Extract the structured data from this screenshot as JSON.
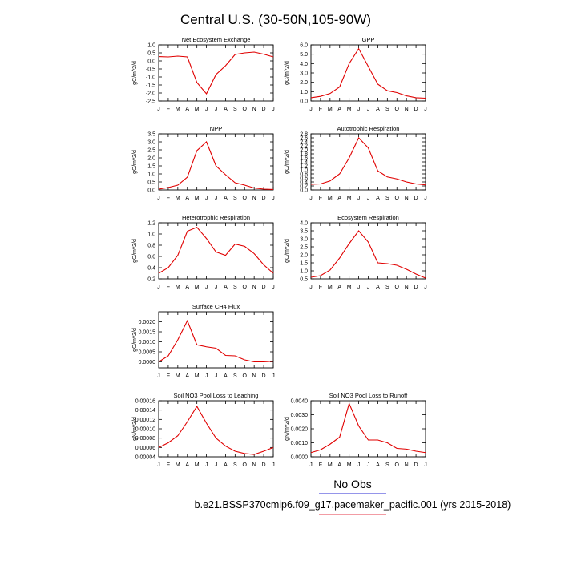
{
  "page": {
    "title": "Central U.S. (30-50N,105-90W)",
    "legend": {
      "label": "No Obs",
      "case": "b.e21.BSSP370cmip6.f09_g17.pacemaker_pacific.001 (yrs 2015-2018)",
      "case_color": "#e6394a",
      "obs_color": "#2b2bd6"
    }
  },
  "chart_data": [
    {
      "type": "line",
      "title": "Net Ecosystem Exchange",
      "ylabel": "gC/m^2/d",
      "categories": [
        "J",
        "F",
        "M",
        "A",
        "M",
        "J",
        "J",
        "A",
        "S",
        "O",
        "N",
        "D",
        "J"
      ],
      "ylim": [
        -2.5,
        1.0
      ],
      "yticks": [
        1.0,
        0.5,
        0.0,
        -0.5,
        -1.0,
        -1.5,
        -2.0,
        -2.5
      ],
      "tick_labels": [
        "1.0",
        "0.5",
        "0.0",
        "-0.5",
        "-1.0",
        "-1.5",
        "-2.0",
        "-2.5"
      ],
      "series": [
        {
          "values": [
            0.27,
            0.25,
            0.3,
            0.25,
            -1.35,
            -2.05,
            -0.85,
            -0.3,
            0.4,
            0.5,
            0.55,
            0.42,
            0.25
          ],
          "color": "#e00000"
        }
      ]
    },
    {
      "type": "line",
      "title": "GPP",
      "ylabel": "gC/m^2/d",
      "categories": [
        "J",
        "F",
        "M",
        "A",
        "M",
        "J",
        "J",
        "A",
        "S",
        "O",
        "N",
        "D",
        "J"
      ],
      "ylim": [
        0.0,
        6.0
      ],
      "yticks": [
        6.0,
        5.0,
        4.0,
        3.0,
        2.0,
        1.0,
        0.0
      ],
      "tick_labels": [
        "6.0",
        "5.0",
        "4.0",
        "3.0",
        "2.0",
        "1.0",
        "0.0"
      ],
      "series": [
        {
          "values": [
            0.35,
            0.5,
            0.8,
            1.5,
            4.0,
            5.6,
            3.7,
            1.8,
            1.1,
            0.9,
            0.55,
            0.35,
            0.3
          ],
          "color": "#e00000"
        }
      ]
    },
    {
      "type": "line",
      "title": "NPP",
      "ylabel": "gC/m^2/d",
      "categories": [
        "J",
        "F",
        "M",
        "A",
        "M",
        "J",
        "J",
        "A",
        "S",
        "O",
        "N",
        "D",
        "J"
      ],
      "ylim": [
        0.0,
        3.5
      ],
      "yticks": [
        3.5,
        3.0,
        2.5,
        2.0,
        1.5,
        1.0,
        0.5,
        0.0
      ],
      "tick_labels": [
        "3.5",
        "3.0",
        "2.5",
        "2.0",
        "1.5",
        "1.0",
        "0.5",
        "0.0"
      ],
      "series": [
        {
          "values": [
            0.05,
            0.15,
            0.3,
            0.8,
            2.45,
            3.0,
            1.5,
            0.95,
            0.45,
            0.3,
            0.12,
            0.05,
            0.03
          ],
          "color": "#e00000"
        }
      ]
    },
    {
      "type": "line",
      "title": "Autotrophic Respiration",
      "ylabel": "gC/m^2/d",
      "categories": [
        "J",
        "F",
        "M",
        "A",
        "M",
        "J",
        "J",
        "A",
        "S",
        "O",
        "N",
        "D",
        "J"
      ],
      "ylim": [
        0.0,
        2.8
      ],
      "yticks": [
        2.8,
        2.6,
        2.4,
        2.2,
        2.0,
        1.8,
        1.6,
        1.4,
        1.2,
        1.0,
        0.8,
        0.6,
        0.4,
        0.2,
        0.0
      ],
      "tick_labels": [
        "2.8",
        "2.6",
        "2.4",
        "2.2",
        "2.0",
        "1.8",
        "1.6",
        "1.4",
        "1.2",
        "1.0",
        "0.8",
        "0.6",
        "0.4",
        "0.2",
        "0.0"
      ],
      "series": [
        {
          "values": [
            0.28,
            0.3,
            0.45,
            0.8,
            1.6,
            2.6,
            2.1,
            0.95,
            0.65,
            0.55,
            0.4,
            0.3,
            0.25
          ],
          "color": "#e00000"
        }
      ]
    },
    {
      "type": "line",
      "title": "Heterotrophic Respiration",
      "ylabel": "gC/m^2/d",
      "categories": [
        "J",
        "F",
        "M",
        "A",
        "M",
        "J",
        "J",
        "A",
        "S",
        "O",
        "N",
        "D",
        "J"
      ],
      "ylim": [
        0.2,
        1.2
      ],
      "yticks": [
        1.2,
        1.0,
        0.8,
        0.6,
        0.4,
        0.2
      ],
      "tick_labels": [
        "1.2",
        "1.0",
        "0.8",
        "0.6",
        "0.4",
        "0.2"
      ],
      "series": [
        {
          "values": [
            0.3,
            0.4,
            0.62,
            1.05,
            1.12,
            0.92,
            0.68,
            0.62,
            0.82,
            0.78,
            0.65,
            0.45,
            0.3
          ],
          "color": "#e00000"
        }
      ]
    },
    {
      "type": "line",
      "title": "Ecosystem Respiration",
      "ylabel": "gC/m^2/d",
      "categories": [
        "J",
        "F",
        "M",
        "A",
        "M",
        "J",
        "J",
        "A",
        "S",
        "O",
        "N",
        "D",
        "J"
      ],
      "ylim": [
        0.5,
        4.0
      ],
      "yticks": [
        4.0,
        3.5,
        3.0,
        2.5,
        2.0,
        1.5,
        1.0,
        0.5
      ],
      "tick_labels": [
        "4.0",
        "3.5",
        "3.0",
        "2.5",
        "2.0",
        "1.5",
        "1.0",
        "0.5"
      ],
      "series": [
        {
          "values": [
            0.6,
            0.7,
            1.05,
            1.8,
            2.7,
            3.5,
            2.8,
            1.5,
            1.45,
            1.35,
            1.1,
            0.8,
            0.55
          ],
          "color": "#e00000"
        }
      ]
    },
    {
      "type": "line",
      "title": "Surface CH4 Flux",
      "ylabel": "gC/m^2/d",
      "categories": [
        "J",
        "F",
        "M",
        "A",
        "M",
        "J",
        "J",
        "A",
        "S",
        "O",
        "N",
        "D",
        "J"
      ],
      "ylim": [
        -0.0003,
        0.0025
      ],
      "yticks": [
        0.002,
        0.0015,
        0.001,
        0.0005,
        0.0
      ],
      "tick_labels": [
        "0.0020",
        "0.0015",
        "0.0010",
        "0.0005",
        "0.0000"
      ],
      "series": [
        {
          "values": [
            0.0,
            0.0003,
            0.0011,
            0.00205,
            0.00085,
            0.00075,
            0.00068,
            0.00032,
            0.0003,
            0.0001,
            0.0,
            0.0,
            3e-05
          ],
          "color": "#e00000"
        }
      ]
    },
    {
      "type": "line",
      "title": "Soil NO3 Pool Loss to Leaching",
      "ylabel": "gN/m^2/d",
      "categories": [
        "J",
        "F",
        "M",
        "A",
        "M",
        "J",
        "J",
        "A",
        "S",
        "O",
        "N",
        "D",
        "J"
      ],
      "ylim": [
        4e-05,
        0.00016
      ],
      "yticks": [
        0.00016,
        0.00014,
        0.00012,
        0.0001,
        8e-05,
        6e-05,
        4e-05
      ],
      "tick_labels": [
        "0.00016",
        "0.00014",
        "0.00012",
        "0.00010",
        "0.00008",
        "0.00006",
        "0.00004"
      ],
      "series": [
        {
          "values": [
            6e-05,
            7e-05,
            8.5e-05,
            0.000115,
            0.000148,
            0.000112,
            8e-05,
            6.3e-05,
            5.2e-05,
            4.7e-05,
            4.5e-05,
            5.2e-05,
            6e-05
          ],
          "color": "#e00000"
        }
      ]
    },
    {
      "type": "line",
      "title": "Soil NO3 Pool Loss to Runoff",
      "ylabel": "gN/m^2/d",
      "categories": [
        "J",
        "F",
        "M",
        "A",
        "M",
        "J",
        "J",
        "A",
        "S",
        "O",
        "N",
        "D",
        "J"
      ],
      "ylim": [
        0.0,
        0.004
      ],
      "yticks": [
        0.004,
        0.003,
        0.002,
        0.001,
        0.0
      ],
      "tick_labels": [
        "0.0040",
        "0.0030",
        "0.0020",
        "0.0010",
        "0.0000"
      ],
      "series": [
        {
          "values": [
            0.0003,
            0.0005,
            0.0009,
            0.0014,
            0.0038,
            0.0022,
            0.0012,
            0.0012,
            0.001,
            0.0006,
            0.00055,
            0.0004,
            0.0003
          ],
          "color": "#e00000"
        }
      ]
    }
  ]
}
